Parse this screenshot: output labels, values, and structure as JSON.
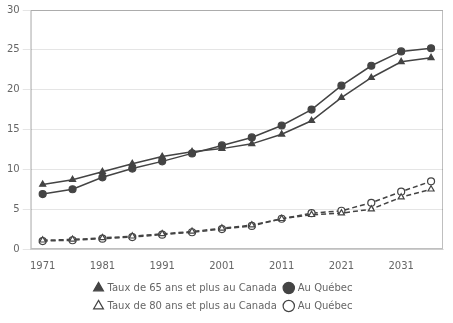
{
  "chart_data": {
    "type": "line",
    "x": [
      1971,
      1976,
      1981,
      1986,
      1991,
      1996,
      2001,
      2006,
      2011,
      2016,
      2021,
      2026,
      2031,
      2036
    ],
    "series": [
      {
        "name": "Taux de 65 ans et plus au Canada",
        "color": "#444444",
        "marker": "triangle",
        "line_style": "solid",
        "values": [
          8.1,
          8.7,
          9.7,
          10.7,
          11.6,
          12.2,
          12.6,
          13.2,
          14.4,
          16.1,
          19.0,
          21.5,
          23.5,
          24.0
        ]
      },
      {
        "name": "Au Québec",
        "color": "#444444",
        "marker": "circle",
        "line_style": "solid",
        "values": [
          6.9,
          7.5,
          9.0,
          10.1,
          11.0,
          12.0,
          13.0,
          14.0,
          15.5,
          17.5,
          20.5,
          23.0,
          24.8,
          25.2
        ]
      },
      {
        "name": "Taux de 80 ans et plus au Canada",
        "color": "#444444",
        "marker": "triangle-open",
        "line_style": "dashed",
        "values": [
          1.1,
          1.2,
          1.4,
          1.6,
          1.9,
          2.2,
          2.6,
          3.0,
          3.8,
          4.3,
          4.5,
          5.0,
          6.5,
          7.5
        ]
      },
      {
        "name": "Au Québec",
        "color": "#444444",
        "marker": "circle-open",
        "line_style": "dashed",
        "values": [
          1.0,
          1.1,
          1.3,
          1.5,
          1.8,
          2.1,
          2.5,
          2.9,
          3.8,
          4.5,
          4.8,
          5.8,
          7.2,
          8.5
        ]
      }
    ],
    "xlim": [
      1969,
      2038
    ],
    "xticks": [
      1971,
      1981,
      1991,
      2001,
      2011,
      2021,
      2031
    ],
    "ylim": [
      0,
      30
    ],
    "yticks": [
      0,
      5,
      10,
      15,
      20,
      25,
      30
    ],
    "grid": "y",
    "legend": "bottom"
  }
}
